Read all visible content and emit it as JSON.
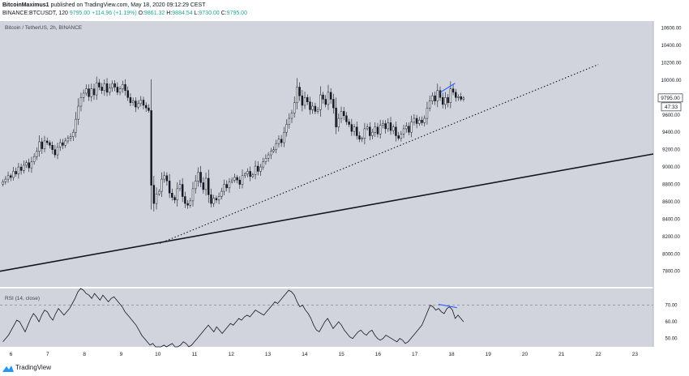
{
  "header": {
    "author": "BitcoinMaximus1",
    "published": "published on TradingView.com, May 18, 2020 09:12:29 CEST",
    "symbol": "BINANCE:BTCUSDT, 120",
    "last": "9795.00",
    "change": "+114.96 (+1.19%)",
    "open_label": "O:",
    "open": "9861.32",
    "high_label": "H:",
    "high": "9884.54",
    "low_label": "L:",
    "low": "9730.00",
    "close_label": "C:",
    "close": "9795.00"
  },
  "main_legend": "Bitcoin / TetherUS, 2h, BINANCE",
  "rsi_legend": "RSI (14, close)",
  "price_badge": "9795.00",
  "countdown_badge": "47:33",
  "footer": {
    "brand": "TradingView"
  },
  "colors": {
    "background": "#d1d4dc",
    "candle": "#131722",
    "rsi_line": "#131722",
    "divergence": "#2962ff",
    "dotted_trendline": "#131722",
    "solid_trendline": "#131722"
  },
  "chart_data": [
    {
      "type": "candlestick",
      "x_tick_labels": [
        "6",
        "7",
        "8",
        "9",
        "10",
        "11",
        "12",
        "13",
        "14",
        "15",
        "16",
        "17",
        "18",
        "19",
        "20",
        "21",
        "22",
        "23"
      ],
      "y_tick_labels": [
        "7800.00",
        "8000.00",
        "8200.00",
        "8400.00",
        "8600.00",
        "8800.00",
        "9000.00",
        "9200.00",
        "9400.00",
        "9600.00",
        "9800.00",
        "10000.00",
        "10200.00",
        "10400.00",
        "10600.00"
      ],
      "ylim": [
        7620,
        10680
      ],
      "xlim": [
        5.7,
        23.5
      ],
      "candle_closes": [
        8830,
        8860,
        8900,
        8880,
        8950,
        8920,
        9000,
        8960,
        9020,
        9050,
        8990,
        9060,
        9120,
        9180,
        9290,
        9210,
        9300,
        9280,
        9250,
        9200,
        9140,
        9230,
        9280,
        9250,
        9300,
        9330,
        9350,
        9400,
        9550,
        9700,
        9800,
        9850,
        9900,
        9810,
        9900,
        9830,
        9970,
        9920,
        9880,
        9960,
        9860,
        9910,
        9960,
        9920,
        9860,
        9900,
        9950,
        9880,
        9800,
        9740,
        9760,
        9690,
        9730,
        9770,
        9710,
        9680,
        9650,
        8790,
        8580,
        8690,
        8720,
        8860,
        8900,
        8840,
        8700,
        8650,
        8620,
        8750,
        8800,
        8660,
        8580,
        8560,
        8610,
        8750,
        8840,
        8940,
        8820,
        8740,
        8870,
        8680,
        8580,
        8640,
        8620,
        8660,
        8720,
        8800,
        8760,
        8830,
        8850,
        8880,
        8850,
        8800,
        8900,
        8920,
        8950,
        8890,
        8910,
        9010,
        8950,
        9000,
        9060,
        9100,
        9140,
        9180,
        9200,
        9270,
        9320,
        9280,
        9400,
        9490,
        9560,
        9620,
        9740,
        9920,
        9820,
        9710,
        9800,
        9750,
        9660,
        9700,
        9640,
        9660,
        9830,
        9780,
        9720,
        9860,
        9780,
        9680,
        9460,
        9560,
        9640,
        9590,
        9520,
        9490,
        9410,
        9460,
        9360,
        9320,
        9330,
        9440,
        9460,
        9360,
        9400,
        9460,
        9380,
        9480,
        9500,
        9440,
        9510,
        9420,
        9460,
        9360,
        9330,
        9380,
        9440,
        9470,
        9400,
        9520,
        9560,
        9500,
        9540,
        9510,
        9560,
        9680,
        9760,
        9820,
        9760,
        9880,
        9800,
        9720,
        9800,
        9740,
        9900,
        9860,
        9800,
        9810,
        9780,
        9795
      ],
      "last_price": 9795.0,
      "open": 9861.32,
      "high": 9884.54,
      "low": 9730.0,
      "close": 9795.0,
      "change": 114.96,
      "change_pct": 1.19,
      "trendlines": [
        {
          "style": "dotted",
          "from": [
            10.05,
            8120
          ],
          "to": [
            22.0,
            10180
          ]
        },
        {
          "style": "solid",
          "from": [
            5.7,
            7800
          ],
          "to": [
            23.5,
            9150
          ]
        },
        {
          "style": "divergence",
          "from": [
            17.7,
            9860
          ],
          "to": [
            18.1,
            9965
          ]
        }
      ]
    },
    {
      "type": "line",
      "name": "RSI (14, close)",
      "y_tick_labels": [
        "50.00",
        "60.00",
        "70.00"
      ],
      "ylim": [
        45,
        80
      ],
      "reference_level": 70,
      "values": [
        48,
        50,
        52,
        55,
        58,
        61,
        60,
        57,
        54,
        58,
        62,
        65,
        63,
        60,
        64,
        67,
        66,
        63,
        61,
        65,
        68,
        66,
        64,
        66,
        68,
        71,
        74,
        78,
        80,
        79,
        77,
        76,
        74,
        77,
        75,
        73,
        76,
        74,
        72,
        74,
        75,
        73,
        71,
        69,
        66,
        64,
        62,
        60,
        58,
        55,
        52,
        50,
        48,
        46,
        47,
        45,
        45,
        45,
        46,
        45,
        46,
        47,
        45,
        45,
        46,
        48,
        47,
        45,
        46,
        48,
        50,
        52,
        54,
        56,
        58,
        56,
        54,
        57,
        55,
        53,
        55,
        57,
        59,
        58,
        60,
        62,
        61,
        63,
        64,
        63,
        65,
        67,
        66,
        65,
        64,
        66,
        68,
        70,
        72,
        71,
        73,
        75,
        77,
        79,
        78,
        76,
        72,
        69,
        70,
        67,
        65,
        62,
        58,
        55,
        54,
        57,
        60,
        62,
        59,
        56,
        58,
        60,
        58,
        55,
        53,
        51,
        50,
        52,
        54,
        55,
        53,
        52,
        54,
        55,
        52,
        50,
        49,
        50,
        52,
        51,
        50,
        49,
        48,
        50,
        49,
        47,
        48,
        50,
        52,
        54,
        56,
        58,
        62,
        66,
        70,
        69,
        67,
        68,
        66,
        65,
        68,
        69,
        67,
        62,
        64,
        62,
        60
      ]
    }
  ]
}
